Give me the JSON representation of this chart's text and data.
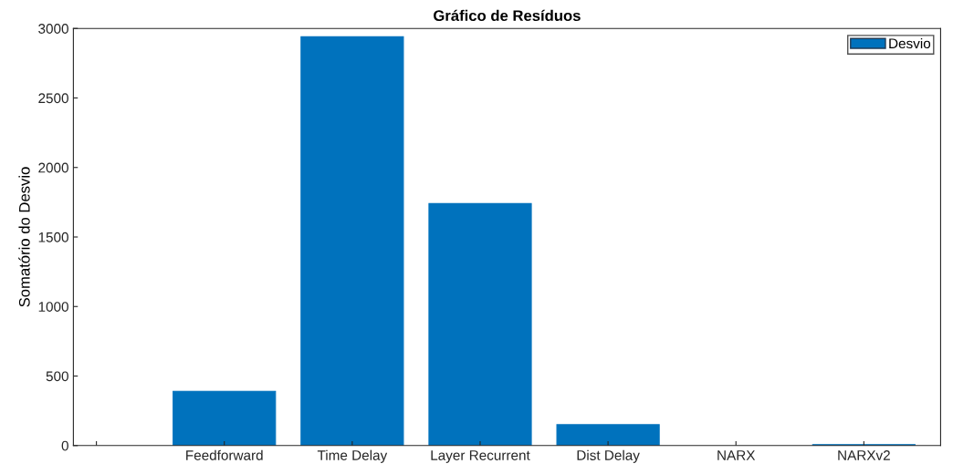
{
  "chart_data": {
    "type": "bar",
    "title": "Gráfico de Resíduos",
    "ylabel": "Somatório do Desvio",
    "categories": [
      null,
      "Feedforward",
      "Time Delay",
      "Layer Recurrent",
      "Dist Delay",
      "NARX",
      "NARXv2"
    ],
    "series": [
      {
        "name": "Desvio",
        "color": "#0072bd",
        "values": [
          null,
          390,
          2940,
          1740,
          150,
          0,
          7
        ]
      }
    ],
    "ylim": [
      0,
      3000
    ],
    "yticks": [
      0,
      500,
      1000,
      1500,
      2000,
      2500,
      3000
    ],
    "grid": false,
    "legend": "top right"
  }
}
